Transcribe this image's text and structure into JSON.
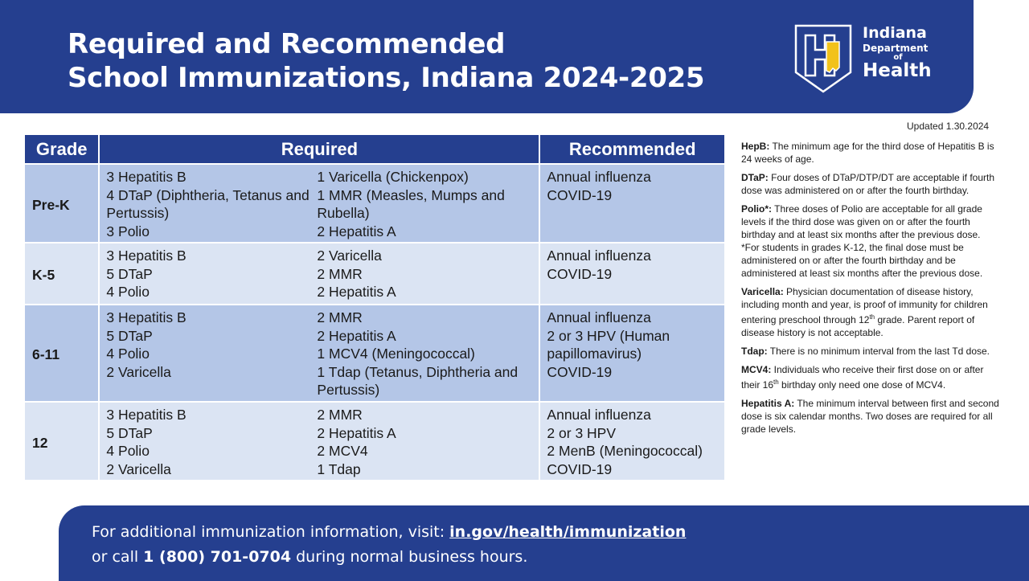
{
  "header": {
    "title_line1": "Required and Recommended",
    "title_line2": "School Immunizations, Indiana 2024-2025"
  },
  "logo": {
    "line1": "Indiana",
    "line2": "Department",
    "line3": "of",
    "line4": "Health",
    "icon": "indiana-state-outline-icon"
  },
  "updated": "Updated 1.30.2024",
  "table": {
    "headers": {
      "grade": "Grade",
      "required": "Required",
      "recommended": "Recommended"
    },
    "rows": [
      {
        "grade": "Pre-K",
        "required_col1": [
          "3 Hepatitis B",
          "4 DTaP (Diphtheria, Tetanus and Pertussis)",
          "3 Polio"
        ],
        "required_col2": [
          "1 Varicella (Chickenpox)",
          "1 MMR (Measles, Mumps and Rubella)",
          "2 Hepatitis A"
        ],
        "recommended": [
          "Annual influenza",
          "COVID-19"
        ]
      },
      {
        "grade": "K-5",
        "required_col1": [
          "3 Hepatitis B",
          "5 DTaP",
          "4 Polio"
        ],
        "required_col2": [
          "2 Varicella",
          "2 MMR",
          "2 Hepatitis A"
        ],
        "recommended": [
          "Annual influenza",
          "COVID-19"
        ]
      },
      {
        "grade": "6-11",
        "required_col1": [
          "3 Hepatitis B",
          "5 DTaP",
          "4 Polio",
          "2 Varicella"
        ],
        "required_col2": [
          "2 MMR",
          "2 Hepatitis A",
          "1 MCV4 (Meningococcal)",
          "1 Tdap (Tetanus, Diphtheria and Pertussis)"
        ],
        "recommended": [
          "Annual influenza",
          "2 or 3 HPV (Human papillomavirus)",
          "COVID-19"
        ]
      },
      {
        "grade": "12",
        "required_col1": [
          "3 Hepatitis B",
          "5 DTaP",
          "4 Polio",
          "2 Varicella"
        ],
        "required_col2": [
          "2 MMR",
          "2 Hepatitis A",
          "2 MCV4",
          "1 Tdap"
        ],
        "recommended": [
          "Annual influenza",
          "2 or 3 HPV",
          "2 MenB (Meningococcal)",
          "COVID-19"
        ]
      }
    ]
  },
  "notes": {
    "hepb": {
      "term": "HepB:",
      "text": " The minimum age for the third dose of Hepatitis B is 24 weeks of age."
    },
    "dtap": {
      "term": "DTaP:",
      "text": " Four doses of DTaP/DTP/DT are acceptable if fourth dose was administered on or after the fourth birthday."
    },
    "polio": {
      "term": "Polio",
      "asterisk": "*:",
      "text": " Three doses of Polio are acceptable for all grade levels if the third dose was given on or after the fourth birthday and at least six months after the previous dose.",
      "footnote": "*For students in grades K-12, the final dose must be administered on or after the fourth birthday and be administered at least six months after the previous dose."
    },
    "varicella": {
      "term": "Varicella:",
      "text_before": " Physician documentation of disease history, including month and year, is proof of immunity for children entering preschool through 12",
      "sup": "th",
      "text_after": " grade. Parent report of disease history is not acceptable."
    },
    "tdap": {
      "term": "Tdap:",
      "text": " There is no minimum interval from the last Td dose."
    },
    "mcv4": {
      "term": "MCV4:",
      "text_before": " Individuals who receive their first dose on or after their 16",
      "sup": "th",
      "text_after": " birthday only need one dose of MCV4."
    },
    "hepa": {
      "term": "Hepatitis A:",
      "text": " The minimum interval between first and second dose is six calendar months. Two doses are required for all grade levels."
    }
  },
  "footer": {
    "line1_prefix": "For additional immunization information, visit: ",
    "link": "in.gov/health/immunization",
    "line2_prefix": "or call ",
    "phone": "1 (800) 701-0704",
    "line2_suffix": " during normal business hours."
  },
  "colors": {
    "brand_blue": "#253f8f",
    "row_dark": "#b4c6e7",
    "row_light": "#dbe4f3"
  }
}
